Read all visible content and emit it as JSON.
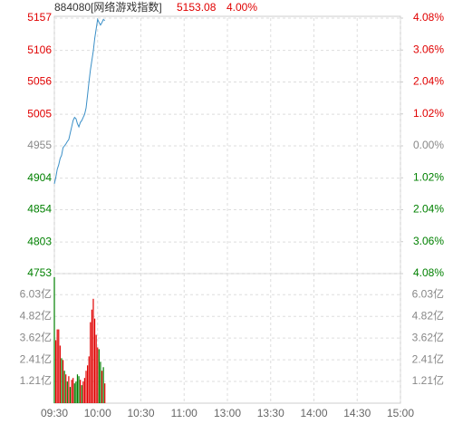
{
  "header": {
    "title": "884080[网络游戏指数]",
    "price": "5153.08",
    "change": "4.00%"
  },
  "chart_data": [
    {
      "type": "line",
      "color": "#3a8fc7",
      "x": [
        0,
        1,
        2,
        3,
        4,
        5,
        6,
        7,
        8,
        9,
        10,
        11,
        12,
        13,
        14,
        15,
        16,
        17,
        18,
        19,
        20,
        21,
        22,
        23,
        24,
        25,
        26,
        27,
        28,
        29,
        30,
        31,
        32,
        33,
        34,
        35
      ],
      "values": [
        4895,
        4905,
        4918,
        4925,
        4935,
        4940,
        4952,
        4955,
        4958,
        4962,
        4965,
        4975,
        4985,
        4995,
        5000,
        4998,
        4990,
        4985,
        4992,
        4995,
        5000,
        5005,
        5015,
        5035,
        5056,
        5075,
        5090,
        5105,
        5125,
        5140,
        5155,
        5150,
        5146,
        5150,
        5155,
        5153.08
      ],
      "xlim": [
        0,
        240
      ],
      "xticks": [
        {
          "value": 0,
          "label": "09:30"
        },
        {
          "value": 30,
          "label": "10:00"
        },
        {
          "value": 60,
          "label": "10:30"
        },
        {
          "value": 90,
          "label": "11:00"
        },
        {
          "value": 120,
          "label": "13:00"
        },
        {
          "value": 150,
          "label": "13:30"
        },
        {
          "value": 180,
          "label": "14:00"
        },
        {
          "value": 210,
          "label": "14:30"
        },
        {
          "value": 240,
          "label": "15:00"
        }
      ],
      "ylim": [
        4753,
        5157
      ],
      "yticks": [
        5157,
        5106,
        5056,
        5005,
        4955,
        4904,
        4854,
        4803,
        4753
      ],
      "y2lim": [
        -4.08,
        4.08
      ],
      "y2ticks": [
        {
          "value": 4.08,
          "label": "4.08%"
        },
        {
          "value": 3.06,
          "label": "3.06%"
        },
        {
          "value": 2.04,
          "label": "2.04%"
        },
        {
          "value": 1.02,
          "label": "1.02%"
        },
        {
          "value": 0,
          "label": "0.00%"
        },
        {
          "value": -1.02,
          "label": "1.02%"
        },
        {
          "value": -2.04,
          "label": "2.04%"
        },
        {
          "value": -3.06,
          "label": "3.06%"
        },
        {
          "value": -4.08,
          "label": "4.08%"
        }
      ],
      "up_color": "#e00000",
      "down_color": "#008000",
      "flat_color": "#888888",
      "grid": true
    },
    {
      "type": "bar",
      "x": [
        0,
        1,
        2,
        3,
        4,
        5,
        6,
        7,
        8,
        9,
        10,
        11,
        12,
        13,
        14,
        15,
        16,
        17,
        18,
        19,
        20,
        21,
        22,
        23,
        24,
        25,
        26,
        27,
        28,
        29,
        30,
        31,
        32,
        33,
        34,
        35
      ],
      "values": [
        7.0,
        3.5,
        4.1,
        4.1,
        3.2,
        2.5,
        2.4,
        1.8,
        1.6,
        1.2,
        1.5,
        0.9,
        1.3,
        1.4,
        1.1,
        1.2,
        1.6,
        1.5,
        1.3,
        1.0,
        1.2,
        1.4,
        1.8,
        2.1,
        2.6,
        4.5,
        5.2,
        5.8,
        4.7,
        3.8,
        3.1,
        3.0,
        2.3,
        1.8,
        2.0,
        1.1
      ],
      "colors": [
        "#008000",
        "#e00000",
        "#e00000",
        "#e00000",
        "#e00000",
        "#008000",
        "#e00000",
        "#008000",
        "#e00000",
        "#008000",
        "#e00000",
        "#008000",
        "#e00000",
        "#e00000",
        "#008000",
        "#008000",
        "#008000",
        "#008000",
        "#e00000",
        "#008000",
        "#e00000",
        "#e00000",
        "#e00000",
        "#e00000",
        "#e00000",
        "#e00000",
        "#e00000",
        "#e00000",
        "#e00000",
        "#e00000",
        "#e00000",
        "#008000",
        "#008000",
        "#e00000",
        "#008000",
        "#e00000"
      ],
      "xlim": [
        0,
        240
      ],
      "ylim": [
        0,
        7.2
      ],
      "yticks": [
        {
          "value": 6.03,
          "label": "6.03亿"
        },
        {
          "value": 4.82,
          "label": "4.82亿"
        },
        {
          "value": 3.62,
          "label": "3.62亿"
        },
        {
          "value": 2.41,
          "label": "2.41亿"
        },
        {
          "value": 1.21,
          "label": "1.21亿"
        }
      ],
      "tick_color": "#888888",
      "grid": true
    }
  ]
}
